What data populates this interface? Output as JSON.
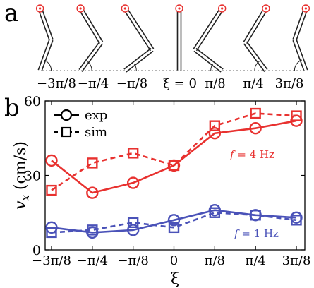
{
  "panels": {
    "a": {
      "label": "a",
      "xi_labels": [
        "−3π/8",
        "−π/4",
        "−π/8",
        "ξ = 0",
        "π/8",
        "π/4",
        "3π/8"
      ],
      "xi_values": [
        -1.1781,
        -0.7854,
        -0.3927,
        0,
        0.3927,
        0.7854,
        1.1781
      ]
    },
    "b": {
      "label": "b"
    }
  },
  "colors": {
    "red": "#e8312f",
    "blue": "#4a52b8",
    "axis": "#000000",
    "mechanism": "#222222",
    "marker": "#e8312f"
  },
  "chart_data": {
    "type": "line",
    "title": "",
    "xlabel": "ξ",
    "ylabel": "v",
    "ylabel_sub": "x",
    "ylabel_unit": "(cm/s)",
    "categories": [
      "−3π/8",
      "−π/4",
      "−π/8",
      "0",
      "π/8",
      "π/4",
      "3π/8"
    ],
    "ylim": [
      0,
      60
    ],
    "yticks": [
      0,
      30,
      60
    ],
    "legend": {
      "placement": "top-left",
      "entries": [
        {
          "label": "exp",
          "style": "solid",
          "marker": "circle"
        },
        {
          "label": "sim",
          "style": "dashed",
          "marker": "square"
        }
      ]
    },
    "annotations": [
      {
        "text": "f = 4 Hz",
        "italic_part": "f",
        "rest": " = 4 Hz",
        "series_color": "red"
      },
      {
        "text": "f = 1 Hz",
        "italic_part": "f",
        "rest": " = 1 Hz",
        "series_color": "blue"
      }
    ],
    "series": [
      {
        "group": "4 Hz",
        "kind": "exp",
        "color": "red",
        "values": [
          36,
          23,
          27,
          34,
          47,
          49,
          52
        ]
      },
      {
        "group": "4 Hz",
        "kind": "sim",
        "color": "red",
        "values": [
          24,
          35,
          39,
          34,
          50,
          55,
          54
        ]
      },
      {
        "group": "1 Hz",
        "kind": "exp",
        "color": "blue",
        "values": [
          9,
          7,
          8,
          12,
          16,
          14,
          13
        ]
      },
      {
        "group": "1 Hz",
        "kind": "sim",
        "color": "blue",
        "values": [
          7,
          8,
          11,
          9,
          15,
          14,
          12
        ]
      }
    ]
  }
}
